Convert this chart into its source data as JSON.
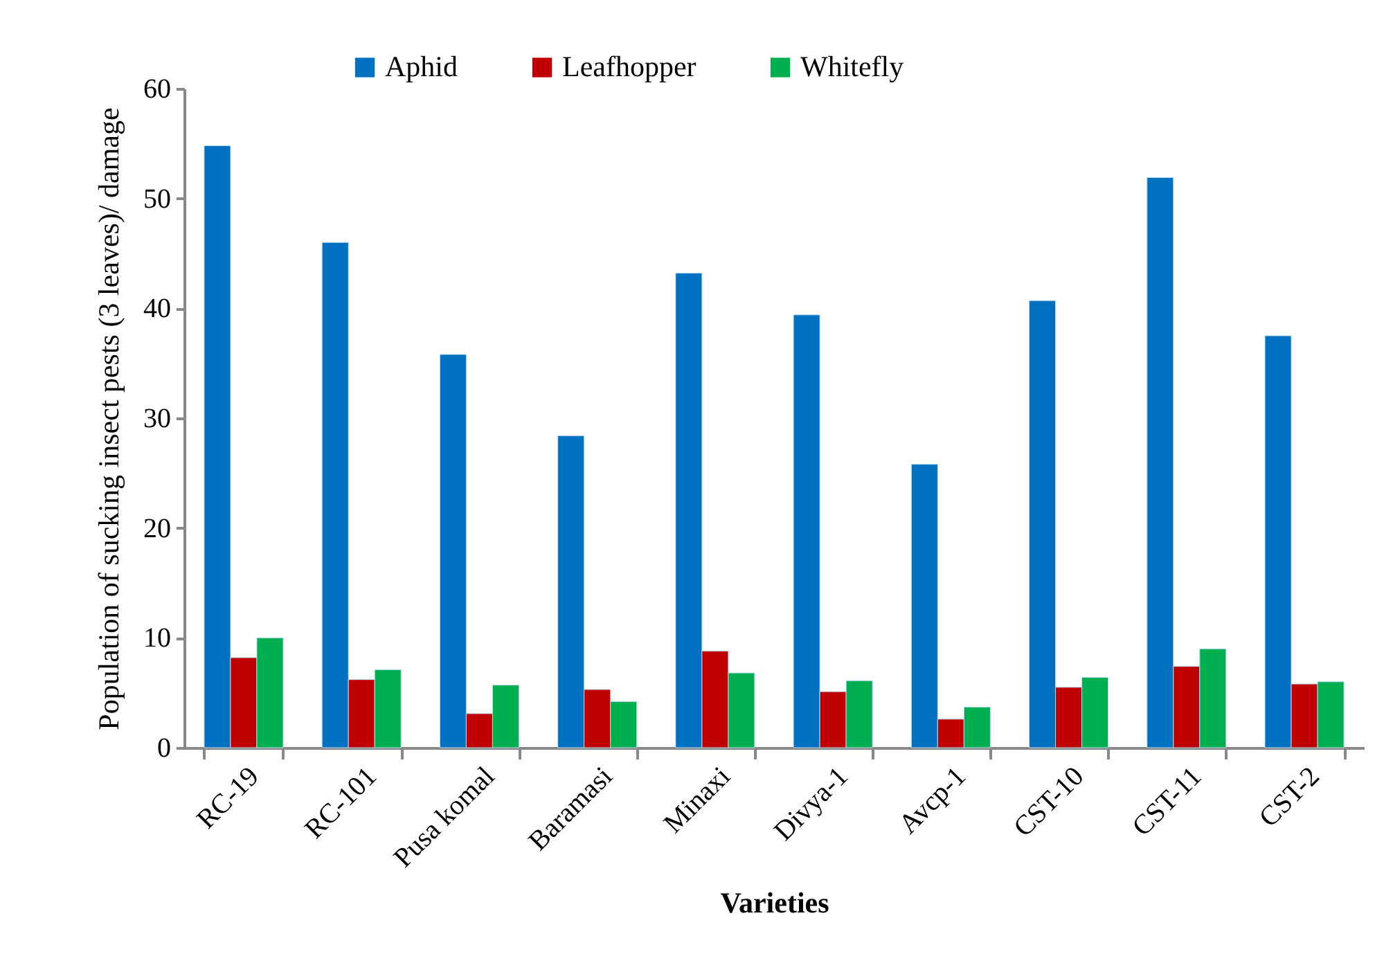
{
  "chart_data": {
    "type": "bar",
    "xlabel": "Varieties",
    "ylabel": "Population of sucking insect pests (3 leaves)/ damage",
    "categories": [
      "RC-19",
      "RC-101",
      "Pusa komal",
      "Baramasi",
      "Minaxi",
      "Divya-1",
      "Avcp-1",
      "CST-10",
      "CST-11",
      "CST-2"
    ],
    "series": [
      {
        "name": "Aphid",
        "color": "#0070c0",
        "values": [
          54.8,
          46.0,
          35.8,
          28.4,
          43.2,
          39.4,
          25.8,
          40.7,
          51.9,
          37.5
        ]
      },
      {
        "name": "Leafhopper",
        "color": "#c00000",
        "values": [
          8.2,
          6.2,
          3.1,
          5.3,
          8.8,
          5.1,
          2.6,
          5.5,
          7.4,
          5.8
        ]
      },
      {
        "name": "Whitefly",
        "color": "#00b050",
        "values": [
          10.0,
          7.1,
          5.7,
          4.2,
          6.8,
          6.1,
          3.7,
          6.4,
          9.0,
          6.0
        ]
      }
    ],
    "ylim": [
      0,
      60
    ],
    "yticks": [
      0,
      10,
      20,
      30,
      40,
      50,
      60
    ],
    "grid": false,
    "legend": "top"
  }
}
